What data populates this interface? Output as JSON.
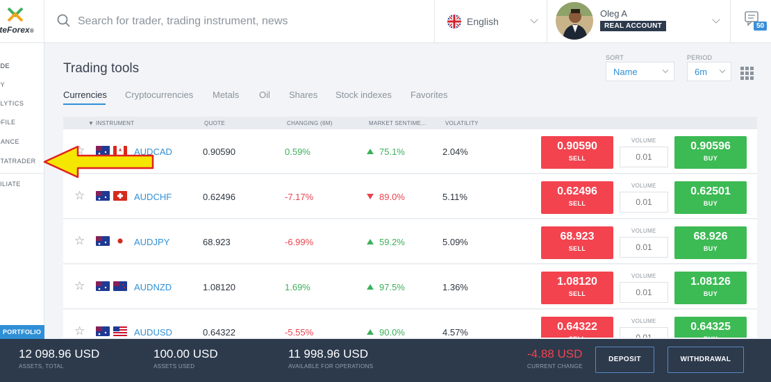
{
  "brand": {
    "logo_text_accent": "i",
    "logo_text": "teForex",
    "logo_suffix": "®"
  },
  "search": {
    "placeholder": "Search for trader, trading instrument, news"
  },
  "language": {
    "label": "English"
  },
  "account": {
    "name": "Oleg A",
    "type": "REAL ACCOUNT"
  },
  "notifications": {
    "count": "50"
  },
  "nav": {
    "items": [
      "ADE",
      "PY",
      "ALYTICS",
      "OFILE",
      "NANCE",
      "ETATRADER",
      "FILIATE"
    ],
    "portfolio": "PORTFOLIO"
  },
  "page": {
    "title": "Trading tools"
  },
  "controls": {
    "sort_label": "SORT",
    "sort_value": "Name",
    "period_label": "PERIOD",
    "period_value": "6m"
  },
  "tabs": [
    "Currencies",
    "Cryptocurrencies",
    "Metals",
    "Oil",
    "Shares",
    "Stock indexes",
    "Favorites"
  ],
  "table": {
    "headers": {
      "instrument": "INSTRUMENT",
      "quote": "QUOTE",
      "changing": "CHANGING (6M)",
      "sentiment": "MARKET SENTIME...",
      "volatility": "VOLATILITY"
    },
    "volume_label": "VOLUME",
    "sell_label": "SELL",
    "buy_label": "BUY",
    "rows": [
      {
        "symbol": "AUDCAD",
        "quote": "0.90590",
        "change": "0.59%",
        "change_dir": "pos",
        "sentiment": "75.1%",
        "sentiment_dir": "up",
        "volatility": "2.04%",
        "sell": "0.90590",
        "buy": "0.90596",
        "volume": "0.01",
        "flag2": "ca"
      },
      {
        "symbol": "AUDCHF",
        "quote": "0.62496",
        "change": "-7.17%",
        "change_dir": "neg",
        "sentiment": "89.0%",
        "sentiment_dir": "down",
        "volatility": "5.11%",
        "sell": "0.62496",
        "buy": "0.62501",
        "volume": "0.01",
        "flag2": "ch"
      },
      {
        "symbol": "AUDJPY",
        "quote": "68.923",
        "change": "-6.99%",
        "change_dir": "neg",
        "sentiment": "59.2%",
        "sentiment_dir": "up",
        "volatility": "5.09%",
        "sell": "68.923",
        "buy": "68.926",
        "volume": "0.01",
        "flag2": "jp"
      },
      {
        "symbol": "AUDNZD",
        "quote": "1.08120",
        "change": "1.69%",
        "change_dir": "pos",
        "sentiment": "97.5%",
        "sentiment_dir": "up",
        "volatility": "1.36%",
        "sell": "1.08120",
        "buy": "1.08126",
        "volume": "0.01",
        "flag2": "nz"
      },
      {
        "symbol": "AUDUSD",
        "quote": "0.64322",
        "change": "-5.55%",
        "change_dir": "neg",
        "sentiment": "90.0%",
        "sentiment_dir": "up",
        "volatility": "4.57%",
        "sell": "0.64322",
        "buy": "0.64325",
        "volume": "0.01",
        "flag2": "us"
      }
    ]
  },
  "footer": {
    "assets_total": "12 098.96 USD",
    "assets_total_label": "ASSETS, TOTAL",
    "assets_used": "100.00 USD",
    "assets_used_label": "ASSETS USED",
    "available": "11 998.96 USD",
    "available_label": "AVAILABLE FOR OPERATIONS",
    "current_change": "-4.88 USD",
    "current_change_label": "CURRENT CHANGE",
    "deposit": "DEPOSIT",
    "withdrawal": "WITHDRAWAL"
  },
  "colors": {
    "sell": "#f2434f",
    "buy": "#3cba54",
    "accent": "#2f8fd6",
    "footer_bg": "#2c3a4c",
    "arrow": "#f5e600"
  }
}
